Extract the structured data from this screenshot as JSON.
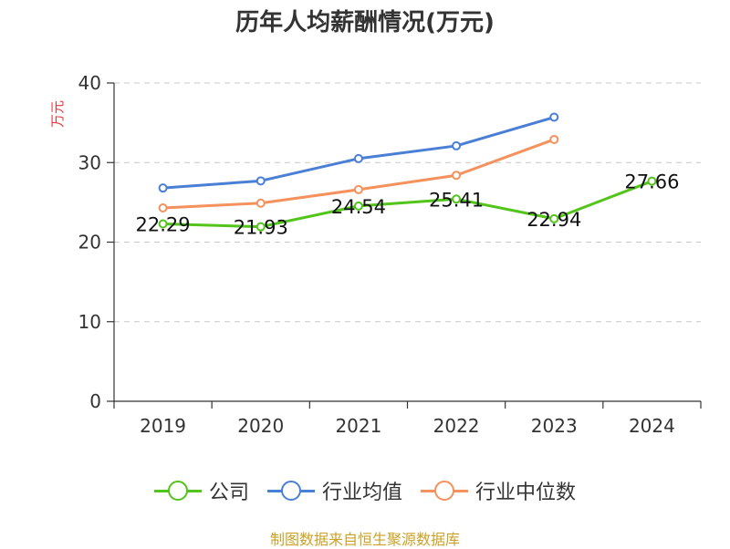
{
  "chart_data": {
    "type": "line",
    "title": "历年人均薪酬情况(万元)",
    "ylabel": "万元",
    "xlabel": "",
    "categories": [
      "2019",
      "2020",
      "2021",
      "2022",
      "2023",
      "2024"
    ],
    "ylim": [
      0,
      40
    ],
    "yticks": [
      0,
      10,
      20,
      30,
      40
    ],
    "grid": true,
    "legend_position": "bottom",
    "series": [
      {
        "name": "公司",
        "color": "#52c41a",
        "values": [
          22.29,
          21.93,
          24.54,
          25.41,
          22.94,
          27.66
        ],
        "show_labels": true
      },
      {
        "name": "行业均值",
        "color": "#4a7fd6",
        "values": [
          26.8,
          27.7,
          30.5,
          32.1,
          35.7,
          null
        ],
        "show_labels": false
      },
      {
        "name": "行业中位数",
        "color": "#f5915c",
        "values": [
          24.3,
          24.9,
          26.6,
          28.4,
          32.9,
          null
        ],
        "show_labels": false
      }
    ]
  },
  "source": "制图数据来自恒生聚源数据库"
}
